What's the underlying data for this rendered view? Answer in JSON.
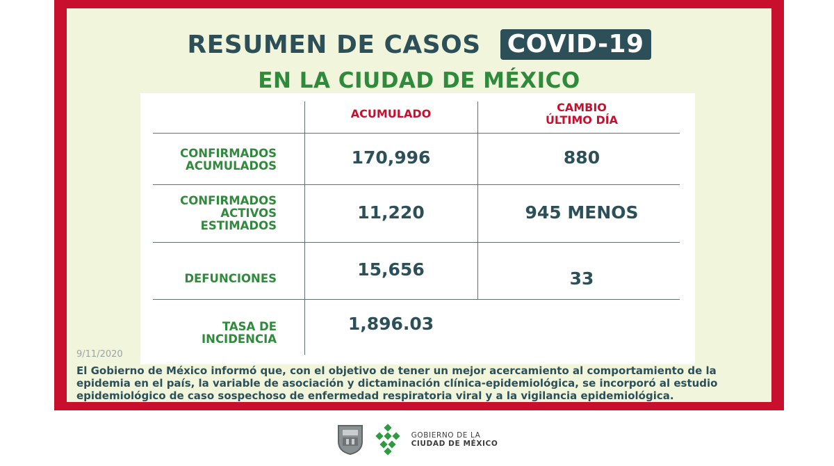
{
  "title": {
    "main": "RESUMEN DE CASOS",
    "badge": "COVID-19",
    "subtitle": "EN LA CIUDAD DE MÉXICO"
  },
  "table": {
    "columns": [
      "ACUMULADO",
      "CAMBIO",
      "ÚLTIMO DÍA"
    ],
    "rows": [
      {
        "label": [
          "CONFIRMADOS",
          "ACUMULADOS"
        ],
        "acumulado": "170,996",
        "cambio": "880"
      },
      {
        "label": [
          "CONFIRMADOS",
          "ACTIVOS",
          "ESTIMADOS"
        ],
        "acumulado": "11,220",
        "cambio": "945 MENOS"
      },
      {
        "label": [
          "DEFUNCIONES"
        ],
        "acumulado": "15,656",
        "cambio": "33"
      },
      {
        "label": [
          "TASA DE",
          "INCIDENCIA"
        ],
        "acumulado": "1,896.03",
        "cambio": ""
      }
    ]
  },
  "date": "9/11/2020",
  "note": "El Gobierno de México informó que, con el objetivo de tener un mejor acercamiento al comportamiento de la epidemia en el país, la variable de asociación y dictaminación clínica-epidemiológica, se incorporó al estudio epidemiológico de caso sospechoso de enfermedad respiratoria viral y a la vigilancia epidemiológica.",
  "footer": {
    "line1": "GOBIERNO DE LA",
    "line2": "CIUDAD DE MÉXICO",
    "icons": [
      "coat-of-arms-icon",
      "cdmx-logo-icon"
    ]
  },
  "colors": {
    "frame": "#c8102e",
    "panel": "#f0f5dc",
    "dark_teal": "#2d5058",
    "green": "#2f8a3c",
    "red": "#c8102e"
  }
}
